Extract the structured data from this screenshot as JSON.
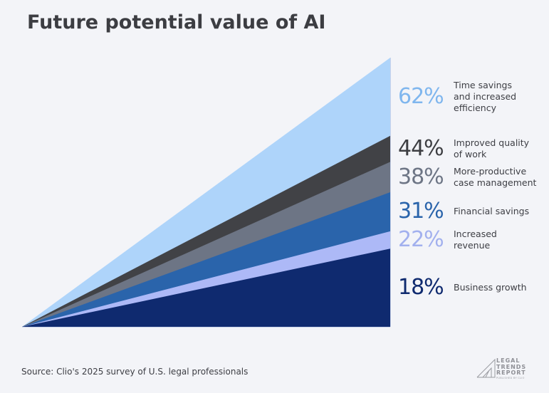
{
  "title": "Future potential value of AI",
  "source": "Source: Clio's 2025 survey of U.S. legal professionals",
  "logo": {
    "line1": "LEGAL",
    "line2": "TRENDS",
    "line3": "REPORT",
    "sub": "PUBLISHED BY CLIO"
  },
  "chart_data": {
    "type": "area",
    "title": "Future potential value of AI",
    "xlabel": "",
    "ylabel": "",
    "ylim": [
      0,
      62
    ],
    "grid": false,
    "legend": "right",
    "categories": [
      "Time savings and increased efficiency",
      "Improved quality of work",
      "More-productive case management",
      "Financial savings",
      "Increased revenue",
      "Business growth"
    ],
    "series": [
      {
        "name": "Time savings and increased efficiency",
        "value": 62,
        "label": "62%",
        "color": "#aed4fa",
        "text_color": "#7fb6ee",
        "lines": [
          "Time savings",
          "and increased",
          "efficiency"
        ]
      },
      {
        "name": "Improved quality of work",
        "value": 44,
        "label": "44%",
        "color": "#414246",
        "text_color": "#3d3e42",
        "lines": [
          "Improved quality",
          "of work"
        ]
      },
      {
        "name": "More-productive case management",
        "value": 38,
        "label": "38%",
        "color": "#6d7585",
        "text_color": "#6d7585",
        "lines": [
          "More-productive",
          "case management"
        ]
      },
      {
        "name": "Financial savings",
        "value": 31,
        "label": "31%",
        "color": "#2a64ab",
        "text_color": "#2a64ab",
        "lines": [
          "Financial savings"
        ]
      },
      {
        "name": "Increased revenue",
        "value": 22,
        "label": "22%",
        "color": "#adb9f7",
        "text_color": "#a2b0ee",
        "lines": [
          "Increased",
          "revenue"
        ]
      },
      {
        "name": "Business growth",
        "value": 18,
        "label": "18%",
        "color": "#0f2a6f",
        "text_color": "#0f2a6f",
        "lines": [
          "Business growth"
        ]
      }
    ]
  }
}
